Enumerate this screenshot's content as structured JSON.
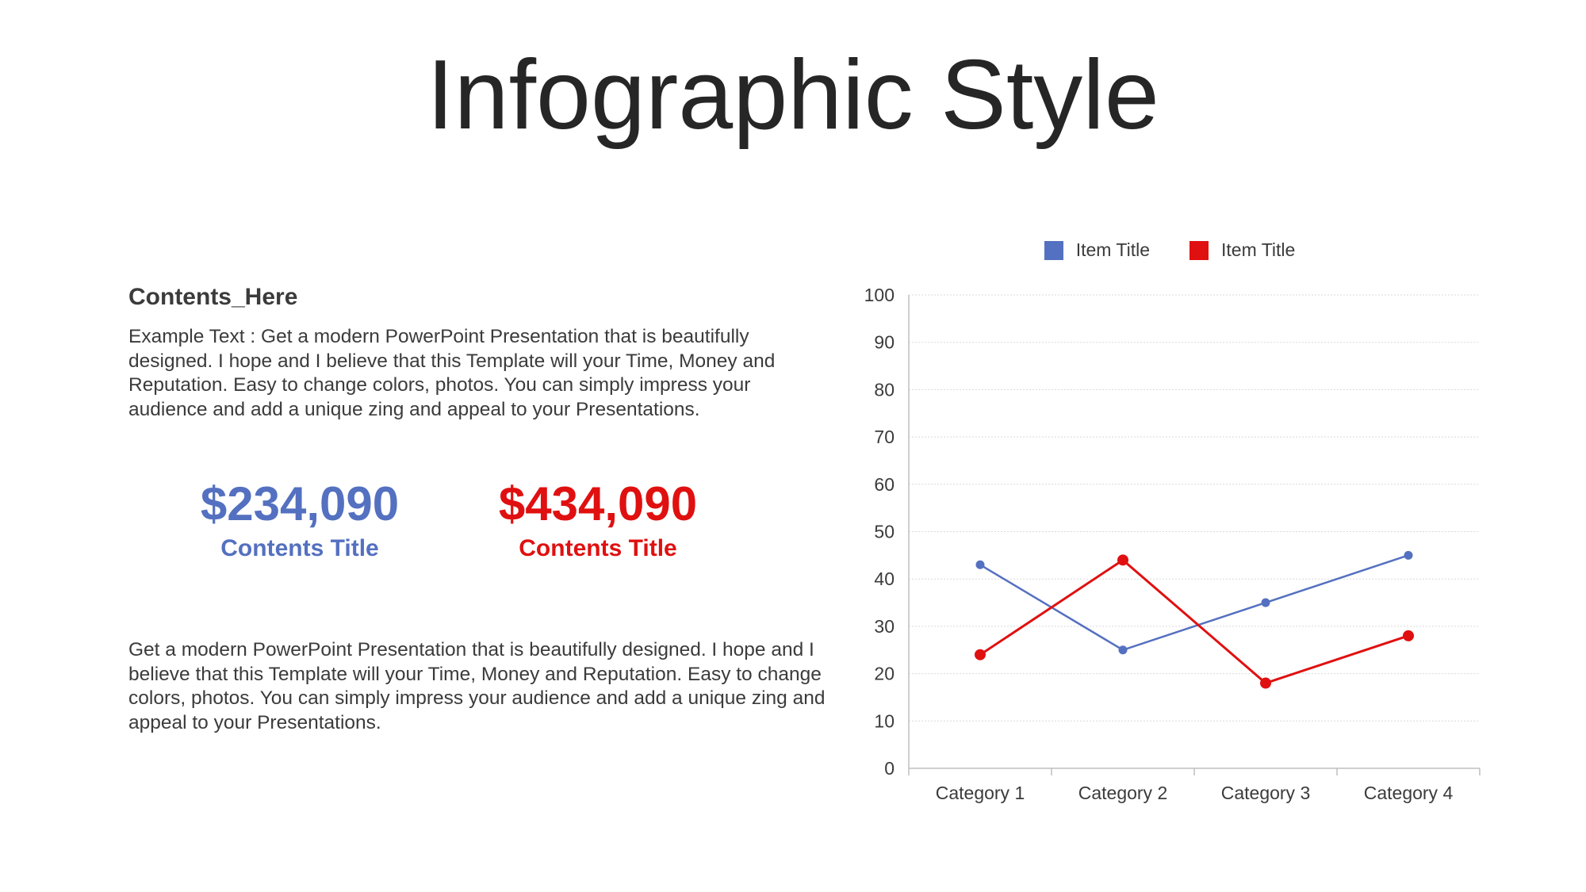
{
  "slide": {
    "title": "Infographic Style"
  },
  "left": {
    "heading": "Contents_Here",
    "paragraph_top": "Example Text : Get a modern PowerPoint  Presentation that is beautifully designed. I hope and I believe that this Template will your Time, Money and Reputation. Easy to change colors, photos. You can simply impress your audience and add a unique zing and appeal to your Presentations.",
    "kpis": [
      {
        "value": "$234,090",
        "label": "Contents Title",
        "color": "#5470c0"
      },
      {
        "value": "$434,090",
        "label": "Contents Title",
        "color": "#e01010"
      }
    ],
    "paragraph_bottom": "Get a modern PowerPoint  Presentation that is beautifully designed. I hope and I believe that this Template will your Time, Money and Reputation. Easy to change colors, photos. You can simply impress your audience and add a unique zing and appeal to your Presentations."
  },
  "chart_data": {
    "type": "line",
    "categories": [
      "Category 1",
      "Category 2",
      "Category 3",
      "Category 4"
    ],
    "series": [
      {
        "name": "Item Title",
        "values": [
          43,
          25,
          35,
          45
        ],
        "color": "#5470c0"
      },
      {
        "name": "Item Title",
        "values": [
          24,
          44,
          18,
          28
        ],
        "color": "#e01010"
      }
    ],
    "title": "",
    "xlabel": "",
    "ylabel": "",
    "ylim": [
      0,
      100
    ],
    "yticks": [
      "0",
      "10",
      "20",
      "30",
      "40",
      "50",
      "60",
      "70",
      "80",
      "90",
      "100"
    ],
    "grid": true,
    "legend_position": "top"
  }
}
